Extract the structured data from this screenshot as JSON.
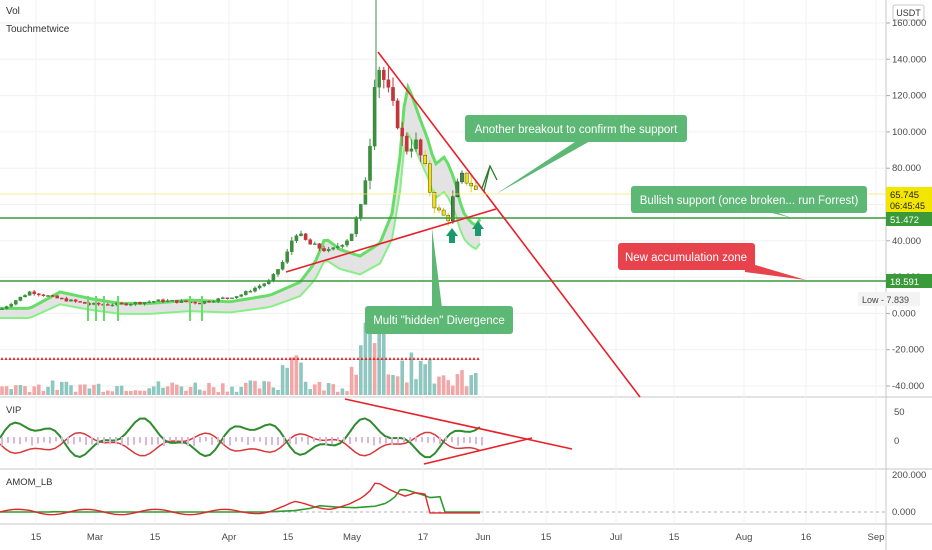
{
  "header": {
    "line1": "Vol",
    "line2": "Touchmetwice"
  },
  "currency_badge": "USDT",
  "chart_data": [
    {
      "type": "candlestick",
      "panel": "main",
      "y_axis_ticks": [
        "160.000",
        "140.000",
        "120.000",
        "100.000",
        "80.000",
        "60.000",
        "40.000",
        "20.000",
        "0.000",
        "-20.000",
        "-40.000"
      ],
      "ylim": [
        -45,
        170
      ],
      "price_labels": {
        "last_price": "65.745",
        "countdown": "06:45:45",
        "support_upper": "51.472",
        "support_lower": "18.591",
        "low": "Low - 7.839"
      },
      "horizontal_levels": [
        51.472,
        18.591
      ],
      "annotations": [
        {
          "name": "another-breakout",
          "text": "Another breakout to confirm the support",
          "color": "#5cb874"
        },
        {
          "name": "bullish-support",
          "text": "Bullish support (once broken... run Forrest)",
          "color": "#5cb874"
        },
        {
          "name": "new-accumulation",
          "text": "New accumulation zone",
          "color": "#e8424d"
        },
        {
          "name": "hidden-divergence",
          "text": "Multi \"hidden\" Divergence",
          "color": "#5cb874"
        }
      ],
      "colors": {
        "up": "#3d8e3f",
        "down": "#c2363b",
        "wick_highlight": "#f2e400",
        "trendline": "#e8202a",
        "support": "#3a9a3a",
        "ribbon": "#66dd66"
      }
    },
    {
      "type": "line",
      "panel": "vip",
      "title": "VIP",
      "y_axis_ticks": [
        "50",
        "0"
      ],
      "colors": {
        "up_line": "#2e8b2e",
        "down_line": "#d83a3a"
      }
    },
    {
      "type": "line",
      "panel": "amom",
      "title": "AMOM_LB",
      "y_axis_ticks": [
        "200.000",
        "0.000"
      ],
      "colors": {
        "fast": "#e0272c",
        "slow": "#2f9a2f"
      }
    }
  ],
  "x_axis_ticks": [
    "15",
    "Mar",
    "15",
    "Apr",
    "15",
    "May",
    "17",
    "Jun",
    "15",
    "Jul",
    "15",
    "Aug",
    "16",
    "Sep"
  ]
}
